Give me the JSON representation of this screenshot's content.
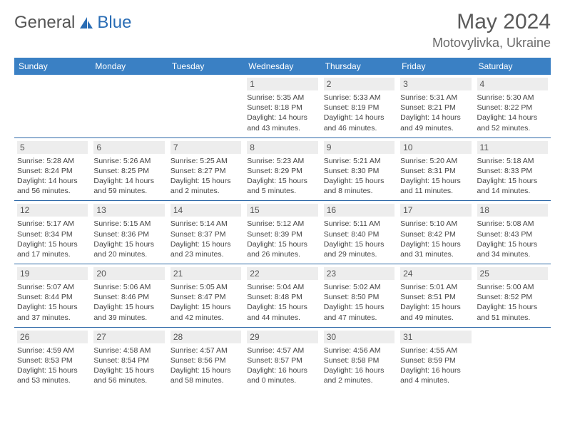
{
  "logo": {
    "part1": "General",
    "part2": "Blue"
  },
  "header": {
    "month_year": "May 2024",
    "location": "Motovylivka, Ukraine"
  },
  "colors": {
    "header_bg": "#3a80c4",
    "row_divider": "#2f6aa8",
    "daynum_bg": "#ededed",
    "text_muted": "#555"
  },
  "days_of_week": [
    "Sunday",
    "Monday",
    "Tuesday",
    "Wednesday",
    "Thursday",
    "Friday",
    "Saturday"
  ],
  "weeks": [
    [
      null,
      null,
      null,
      {
        "n": "1",
        "sunrise": "5:35 AM",
        "sunset": "8:18 PM",
        "day_h": "14",
        "day_m": "43"
      },
      {
        "n": "2",
        "sunrise": "5:33 AM",
        "sunset": "8:19 PM",
        "day_h": "14",
        "day_m": "46"
      },
      {
        "n": "3",
        "sunrise": "5:31 AM",
        "sunset": "8:21 PM",
        "day_h": "14",
        "day_m": "49"
      },
      {
        "n": "4",
        "sunrise": "5:30 AM",
        "sunset": "8:22 PM",
        "day_h": "14",
        "day_m": "52"
      }
    ],
    [
      {
        "n": "5",
        "sunrise": "5:28 AM",
        "sunset": "8:24 PM",
        "day_h": "14",
        "day_m": "56"
      },
      {
        "n": "6",
        "sunrise": "5:26 AM",
        "sunset": "8:25 PM",
        "day_h": "14",
        "day_m": "59"
      },
      {
        "n": "7",
        "sunrise": "5:25 AM",
        "sunset": "8:27 PM",
        "day_h": "15",
        "day_m": "2"
      },
      {
        "n": "8",
        "sunrise": "5:23 AM",
        "sunset": "8:29 PM",
        "day_h": "15",
        "day_m": "5"
      },
      {
        "n": "9",
        "sunrise": "5:21 AM",
        "sunset": "8:30 PM",
        "day_h": "15",
        "day_m": "8"
      },
      {
        "n": "10",
        "sunrise": "5:20 AM",
        "sunset": "8:31 PM",
        "day_h": "15",
        "day_m": "11"
      },
      {
        "n": "11",
        "sunrise": "5:18 AM",
        "sunset": "8:33 PM",
        "day_h": "15",
        "day_m": "14"
      }
    ],
    [
      {
        "n": "12",
        "sunrise": "5:17 AM",
        "sunset": "8:34 PM",
        "day_h": "15",
        "day_m": "17"
      },
      {
        "n": "13",
        "sunrise": "5:15 AM",
        "sunset": "8:36 PM",
        "day_h": "15",
        "day_m": "20"
      },
      {
        "n": "14",
        "sunrise": "5:14 AM",
        "sunset": "8:37 PM",
        "day_h": "15",
        "day_m": "23"
      },
      {
        "n": "15",
        "sunrise": "5:12 AM",
        "sunset": "8:39 PM",
        "day_h": "15",
        "day_m": "26"
      },
      {
        "n": "16",
        "sunrise": "5:11 AM",
        "sunset": "8:40 PM",
        "day_h": "15",
        "day_m": "29"
      },
      {
        "n": "17",
        "sunrise": "5:10 AM",
        "sunset": "8:42 PM",
        "day_h": "15",
        "day_m": "31"
      },
      {
        "n": "18",
        "sunrise": "5:08 AM",
        "sunset": "8:43 PM",
        "day_h": "15",
        "day_m": "34"
      }
    ],
    [
      {
        "n": "19",
        "sunrise": "5:07 AM",
        "sunset": "8:44 PM",
        "day_h": "15",
        "day_m": "37"
      },
      {
        "n": "20",
        "sunrise": "5:06 AM",
        "sunset": "8:46 PM",
        "day_h": "15",
        "day_m": "39"
      },
      {
        "n": "21",
        "sunrise": "5:05 AM",
        "sunset": "8:47 PM",
        "day_h": "15",
        "day_m": "42"
      },
      {
        "n": "22",
        "sunrise": "5:04 AM",
        "sunset": "8:48 PM",
        "day_h": "15",
        "day_m": "44"
      },
      {
        "n": "23",
        "sunrise": "5:02 AM",
        "sunset": "8:50 PM",
        "day_h": "15",
        "day_m": "47"
      },
      {
        "n": "24",
        "sunrise": "5:01 AM",
        "sunset": "8:51 PM",
        "day_h": "15",
        "day_m": "49"
      },
      {
        "n": "25",
        "sunrise": "5:00 AM",
        "sunset": "8:52 PM",
        "day_h": "15",
        "day_m": "51"
      }
    ],
    [
      {
        "n": "26",
        "sunrise": "4:59 AM",
        "sunset": "8:53 PM",
        "day_h": "15",
        "day_m": "53"
      },
      {
        "n": "27",
        "sunrise": "4:58 AM",
        "sunset": "8:54 PM",
        "day_h": "15",
        "day_m": "56"
      },
      {
        "n": "28",
        "sunrise": "4:57 AM",
        "sunset": "8:56 PM",
        "day_h": "15",
        "day_m": "58"
      },
      {
        "n": "29",
        "sunrise": "4:57 AM",
        "sunset": "8:57 PM",
        "day_h": "16",
        "day_m": "0"
      },
      {
        "n": "30",
        "sunrise": "4:56 AM",
        "sunset": "8:58 PM",
        "day_h": "16",
        "day_m": "2"
      },
      {
        "n": "31",
        "sunrise": "4:55 AM",
        "sunset": "8:59 PM",
        "day_h": "16",
        "day_m": "4"
      },
      null
    ]
  ],
  "labels": {
    "sunrise": "Sunrise:",
    "sunset": "Sunset:",
    "daylight": "Daylight:",
    "hours_word": "hours",
    "and_word": "and",
    "minutes_word": "minutes."
  }
}
